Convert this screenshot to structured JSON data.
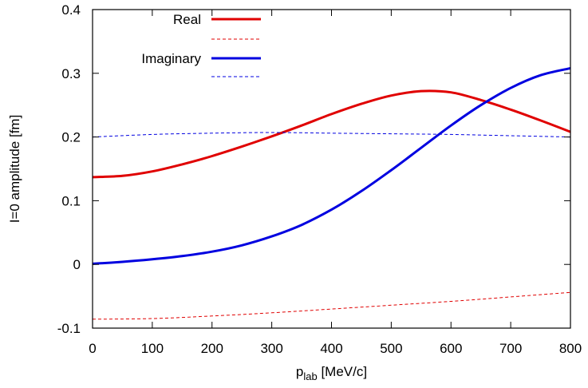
{
  "chart_data": {
    "type": "line",
    "xlabel": "p",
    "xlabel_sub": "lab",
    "xlabel_unit": " [MeV/c]",
    "ylabel": "I=0 amplitude [fm]",
    "xlim": [
      0,
      800
    ],
    "ylim": [
      -0.1,
      0.4
    ],
    "xticks": [
      0,
      100,
      200,
      300,
      400,
      500,
      600,
      700,
      800
    ],
    "yticks": [
      -0.1,
      0,
      0.1,
      0.2,
      0.3,
      0.4
    ],
    "xtick_labels": [
      "0",
      "100",
      "200",
      "300",
      "400",
      "500",
      "600",
      "700",
      "800"
    ],
    "ytick_labels": [
      "-0.1",
      "0",
      "0.1",
      "0.2",
      "0.3",
      "0.4"
    ],
    "grid": false,
    "legend_position": "top-left",
    "series": [
      {
        "name": "Real",
        "color": "#e00000",
        "style": "solid",
        "x": [
          0,
          50,
          100,
          150,
          200,
          250,
          300,
          350,
          400,
          450,
          500,
          550,
          600,
          650,
          700,
          750,
          800
        ],
        "y": [
          0.137,
          0.139,
          0.146,
          0.157,
          0.17,
          0.185,
          0.201,
          0.218,
          0.236,
          0.252,
          0.265,
          0.272,
          0.27,
          0.258,
          0.243,
          0.226,
          0.208
        ]
      },
      {
        "name": "",
        "color": "#e00000",
        "style": "dashed",
        "x": [
          0,
          100,
          200,
          300,
          400,
          500,
          600,
          700,
          800
        ],
        "y": [
          -0.086,
          -0.085,
          -0.081,
          -0.076,
          -0.07,
          -0.064,
          -0.058,
          -0.051,
          -0.044
        ]
      },
      {
        "name": "Imaginary",
        "color": "#0000e0",
        "style": "solid",
        "x": [
          0,
          50,
          100,
          150,
          200,
          250,
          300,
          350,
          400,
          450,
          500,
          550,
          600,
          650,
          700,
          750,
          800
        ],
        "y": [
          0.001,
          0.004,
          0.008,
          0.013,
          0.02,
          0.03,
          0.044,
          0.062,
          0.086,
          0.115,
          0.148,
          0.183,
          0.218,
          0.25,
          0.277,
          0.297,
          0.308
        ]
      },
      {
        "name": "",
        "color": "#0000e0",
        "style": "dashed",
        "x": [
          0,
          100,
          200,
          300,
          400,
          500,
          600,
          700,
          800
        ],
        "y": [
          0.2,
          0.204,
          0.206,
          0.207,
          0.206,
          0.205,
          0.204,
          0.202,
          0.2
        ]
      }
    ]
  }
}
